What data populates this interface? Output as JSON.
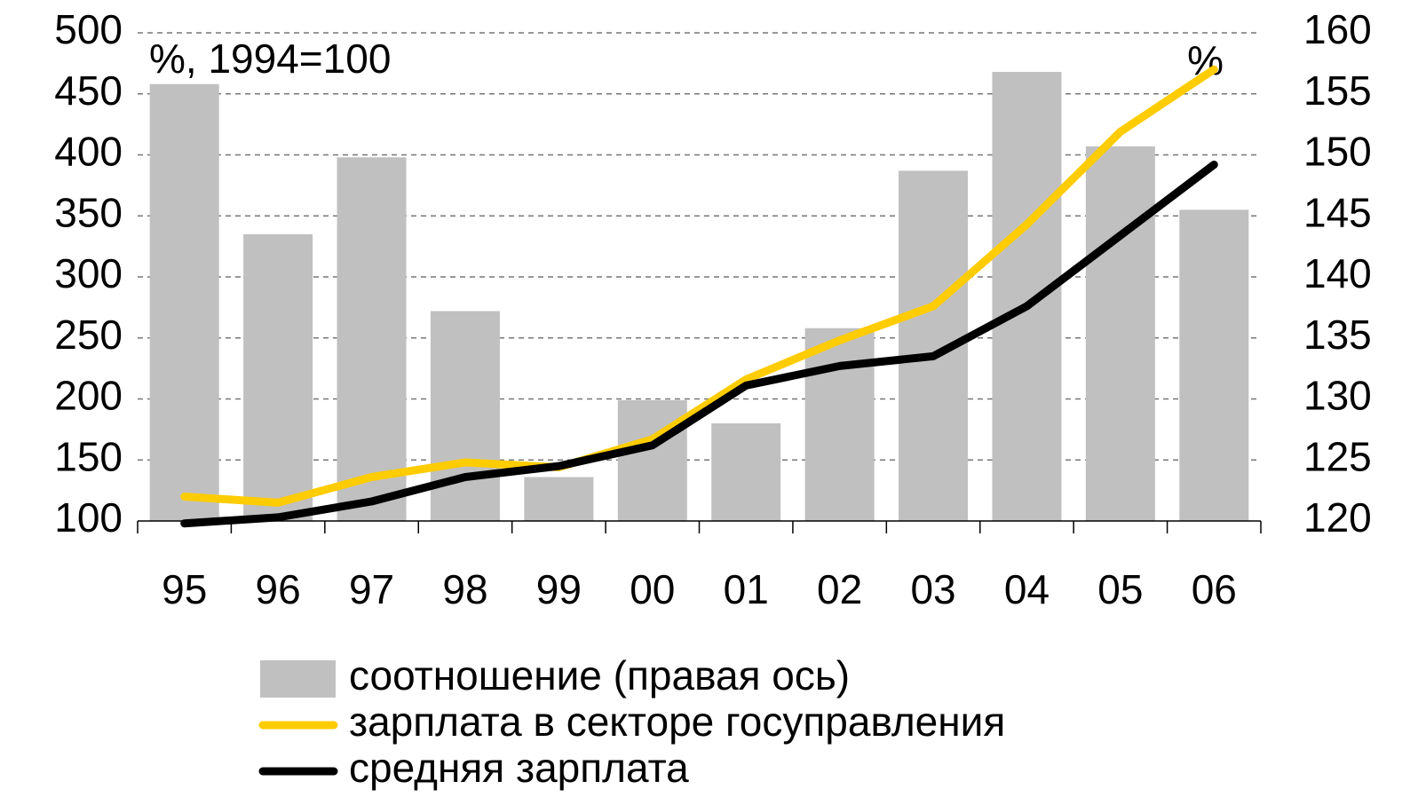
{
  "chart_data": {
    "type": "bar_line",
    "annotations": [
      "%, 1994=100",
      "%"
    ],
    "categories": [
      "95",
      "96",
      "97",
      "98",
      "99",
      "00",
      "01",
      "02",
      "03",
      "04",
      "05",
      "06"
    ],
    "series": [
      {
        "name": "соотношение (правая ось)",
        "color": "#c0c0c0",
        "type": "bar",
        "axis": "y2",
        "values": [
          155.8,
          143.5,
          149.8,
          137.2,
          123.6,
          129.9,
          128,
          135.8,
          148.7,
          156.8,
          150.7,
          145.5
        ]
      },
      {
        "name": "зарплата в секторе госуправления",
        "color": "#ffcc00",
        "type": "line",
        "values": [
          120,
          115,
          136,
          148,
          144,
          167,
          216,
          248,
          276,
          343,
          419,
          470
        ]
      },
      {
        "name": "средняя зарплата",
        "color": "#000000",
        "type": "line",
        "values": [
          98,
          103,
          116,
          136,
          145,
          162,
          211,
          227,
          235,
          276,
          334,
          392
        ]
      }
    ],
    "ylim": [
      100,
      500
    ],
    "yticks": [
      100,
      150,
      200,
      250,
      300,
      350,
      400,
      450,
      500
    ],
    "y2lim": [
      120,
      160
    ],
    "y2ticks": [
      120,
      125,
      130,
      135,
      140,
      145,
      150,
      155,
      160
    ],
    "grid": true,
    "legend": "bottom"
  }
}
